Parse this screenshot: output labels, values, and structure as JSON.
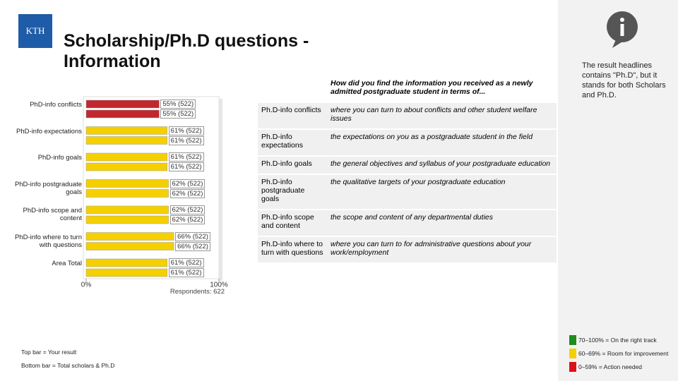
{
  "logo": {
    "text": "KTH"
  },
  "header": {
    "title": "Scholarship/Ph.D questions - Information"
  },
  "chart_data": {
    "type": "bar",
    "orientation": "horizontal",
    "categories": [
      "PhD-info conflicts",
      "PhD-info expectations",
      "PhD-info goals",
      "PhD-info postgraduate goals",
      "PhD-info scope and content",
      "PhD-info where to turn with questions",
      "Area Total"
    ],
    "series": [
      {
        "name": "Top bar = Your result",
        "colors": [
          "#c0282d",
          "#f5d000",
          "#f5d000",
          "#f5d000",
          "#f5d000",
          "#f5d000",
          "#f5d000"
        ],
        "values": [
          55,
          61,
          61,
          62,
          62,
          66,
          61
        ],
        "value_labels": [
          "55% (522)",
          "61% (522)",
          "61% (522)",
          "62% (522)",
          "62% (522)",
          "66% (522)",
          "61% (522)"
        ]
      },
      {
        "name": "Bottom bar = Total scholars & Ph.D",
        "colors": [
          "#c0282d",
          "#f5d000",
          "#f5d000",
          "#f5d000",
          "#f5d000",
          "#f5d000",
          "#f5d000"
        ],
        "values": [
          55,
          61,
          61,
          62,
          62,
          66,
          61
        ],
        "value_labels": [
          "55% (522)",
          "61% (522)",
          "61% (522)",
          "62% (522)",
          "62% (522)",
          "66% (522)",
          "61% (522)"
        ]
      }
    ],
    "xlim": [
      0,
      100
    ],
    "xticks": [
      {
        "value": 0,
        "label": "0%"
      },
      {
        "value": 100,
        "label": "100%"
      }
    ],
    "annotation": "Respondents: 622"
  },
  "table": {
    "question": "How did you find the information you received as a newly admitted postgraduate student in terms of...",
    "rows": [
      [
        "Ph.D-info conflicts",
        "where you can turn to about conflicts and other student welfare issues"
      ],
      [
        "Ph.D-info expectations",
        "the expectations on you as a postgraduate student in the field"
      ],
      [
        "Ph.D-info goals",
        "the general objectives and syllabus of your postgraduate education"
      ],
      [
        "Ph.D-info postgraduate goals",
        "the qualitative targets of your postgraduate education"
      ],
      [
        "Ph.D-info scope and content",
        "the scope and content of any departmental duties"
      ],
      [
        "Ph.D-info where to turn with questions",
        "where you can turn to for administrative questions about your work/employment"
      ]
    ]
  },
  "side_panel": {
    "note": "The result headlines contains \"Ph.D\", but it stands for both Scholars and Ph.D.",
    "thresholds": [
      {
        "label": "70–100% = On the right track",
        "color": "#1e8c1e"
      },
      {
        "label": "60–69% = Room for improvement",
        "color": "#f5d000"
      },
      {
        "label": "0–59% = Action needed",
        "color": "#e0101a"
      }
    ]
  }
}
